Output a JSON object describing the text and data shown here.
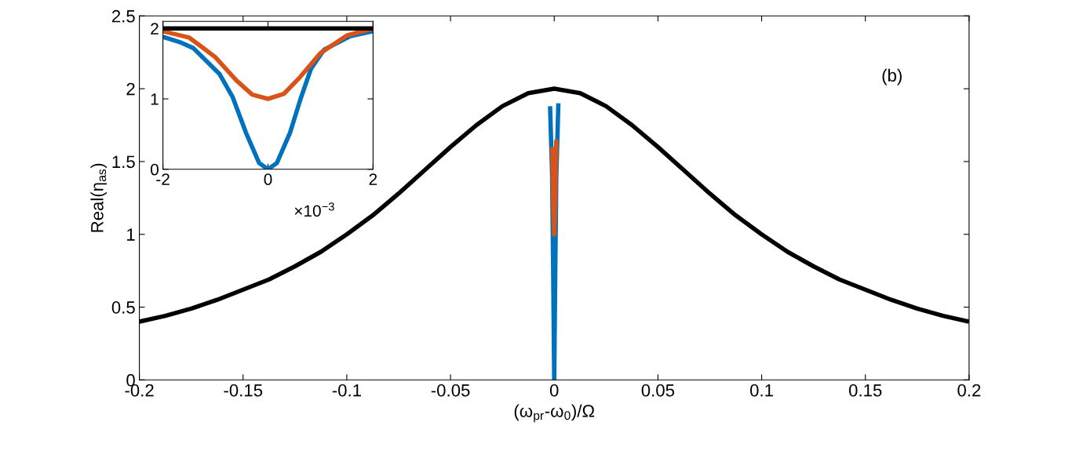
{
  "chart_data": [
    {
      "type": "line",
      "xlabel": "(ω$_{pr}$-ω$_{0}$)/Ω",
      "ylabel": "Real(η$_{as}$)",
      "annotations": [
        "(b)"
      ],
      "xlim": [
        -0.2,
        0.2
      ],
      "ylim": [
        0,
        2.5
      ],
      "xticks": [
        -0.2,
        -0.15,
        -0.1,
        -0.05,
        0,
        0.05,
        0.1,
        0.15,
        0.2
      ],
      "yticks": [
        0,
        0.5,
        1,
        1.5,
        2,
        2.5
      ],
      "series": [
        {
          "color": "#0072bd",
          "x": [
            -0.002,
            -0.001,
            -0.0005,
            0,
            0.0005,
            0.001,
            0.002
          ],
          "values": [
            1.88,
            1.4,
            0.75,
            0,
            0.75,
            1.4,
            1.9
          ]
        },
        {
          "color": "#d95319",
          "x": [
            -0.001,
            -0.0005,
            0,
            0.0005,
            0.001
          ],
          "values": [
            1.6,
            1.25,
            1.0,
            1.25,
            1.65
          ]
        },
        {
          "color": "#000000",
          "x": [
            -0.2,
            -0.1875,
            -0.175,
            -0.1625,
            -0.15,
            -0.1375,
            -0.125,
            -0.1125,
            -0.1,
            -0.0875,
            -0.075,
            -0.0625,
            -0.05,
            -0.0375,
            -0.025,
            -0.0125,
            0,
            0.0125,
            0.025,
            0.0375,
            0.05,
            0.0625,
            0.075,
            0.0875,
            0.1,
            0.1125,
            0.125,
            0.1375,
            0.15,
            0.1625,
            0.175,
            0.1875,
            0.2
          ],
          "values": [
            0.4,
            0.44,
            0.49,
            0.55,
            0.62,
            0.69,
            0.78,
            0.88,
            1.0,
            1.13,
            1.28,
            1.44,
            1.6,
            1.75,
            1.88,
            1.97,
            2.0,
            1.97,
            1.88,
            1.75,
            1.6,
            1.44,
            1.28,
            1.13,
            1.0,
            0.88,
            0.78,
            0.69,
            0.62,
            0.55,
            0.49,
            0.44,
            0.4
          ]
        }
      ]
    },
    {
      "type": "line",
      "annotations": [
        "×10$^{−3}$"
      ],
      "xlim": [
        -2,
        2
      ],
      "ylim": [
        0,
        2.1
      ],
      "xticks": [
        -2,
        0,
        2
      ],
      "yticks": [
        0,
        1,
        2
      ],
      "series": [
        {
          "color": "#0072bd",
          "x": [
            -2,
            -1.66,
            -1.42,
            -0.92,
            -0.67,
            -0.42,
            -0.17,
            0,
            0.17,
            0.42,
            0.62,
            0.82,
            1.07,
            1.57,
            2
          ],
          "values": [
            1.88,
            1.8,
            1.72,
            1.35,
            1.02,
            0.52,
            0.09,
            0,
            0.09,
            0.52,
            1.0,
            1.43,
            1.7,
            1.89,
            1.96
          ]
        },
        {
          "color": "#d95319",
          "x": [
            -2,
            -1.5,
            -1.0,
            -0.6,
            -0.3,
            0,
            0.3,
            0.6,
            1.0,
            1.5,
            2
          ],
          "values": [
            1.96,
            1.87,
            1.59,
            1.26,
            1.06,
            1.0,
            1.07,
            1.3,
            1.65,
            1.9,
            2.0
          ]
        },
        {
          "color": "#000000",
          "x": [
            -2,
            2
          ],
          "values": [
            2.0,
            2.0
          ]
        }
      ]
    }
  ]
}
